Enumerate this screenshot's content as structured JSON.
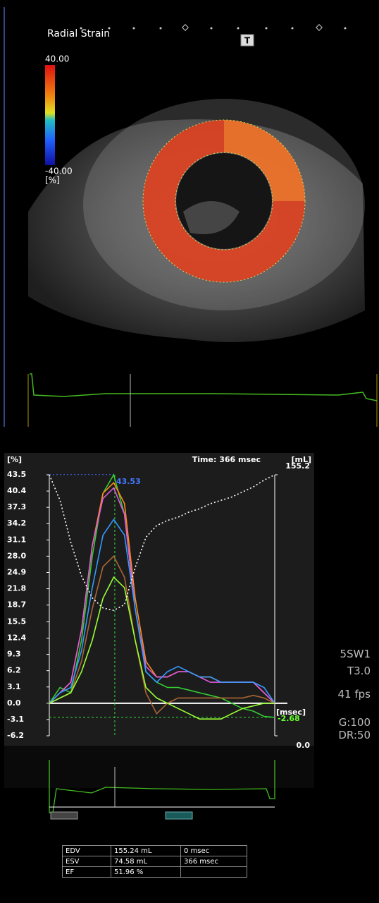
{
  "echo": {
    "title": "Radial Strain",
    "scale_max": "40.00",
    "scale_min": "-40.00",
    "scale_unit": "[%]",
    "button": "T"
  },
  "chart_data": {
    "type": "line",
    "y_label": "[%]",
    "y2_label": "[mL]",
    "x_label": "[msec]",
    "time_label": "Time: 366 msec",
    "cursor_x": 366,
    "peak_value": 43.53,
    "end_value": -2.68,
    "x": [
      0,
      60,
      120,
      180,
      240,
      300,
      360,
      420,
      480,
      540,
      600,
      660,
      720,
      780,
      840,
      900,
      960,
      1020,
      1080,
      1140,
      1200,
      1260
    ],
    "xlim": [
      0,
      1260
    ],
    "ylim": [
      -6.2,
      43.5
    ],
    "yticks": [
      43.5,
      40.4,
      37.3,
      34.2,
      31.1,
      {
        "value": 28,
        "label": "28.0"
      },
      24.9,
      21.8,
      18.7,
      15.5,
      12.4,
      9.3,
      6.2,
      3.1,
      {
        "value": 0,
        "label": "0.0"
      },
      -3.1,
      -6.2
    ],
    "y2lim": [
      0,
      155.2
    ],
    "y2ticks": [
      155.2,
      {
        "value": 0,
        "label": "0.0"
      }
    ],
    "series": [
      {
        "color": "#33cc33",
        "values": [
          0,
          3,
          2,
          12,
          28,
          40,
          43.5,
          36,
          18,
          6,
          4,
          3,
          3,
          2.5,
          2,
          1.5,
          1,
          0,
          -1,
          -1.5,
          -2.5,
          -2.7
        ]
      },
      {
        "color": "#ff8a1a",
        "values": [
          0,
          2,
          4,
          14,
          30,
          40,
          42,
          38,
          20,
          8,
          5,
          5,
          6,
          6,
          5,
          5,
          4,
          4,
          4,
          4,
          2,
          0
        ]
      },
      {
        "color": "#e05ae0",
        "values": [
          0,
          2,
          4,
          14,
          30,
          39,
          41,
          36,
          18,
          7,
          5,
          5,
          6,
          6,
          5,
          4,
          4,
          4,
          4,
          4,
          2,
          0
        ]
      },
      {
        "color": "#3399ff",
        "values": [
          0,
          2,
          3,
          10,
          22,
          32,
          35,
          32,
          18,
          6,
          4,
          6,
          7,
          6,
          5,
          5,
          4,
          4,
          4,
          4,
          3,
          0
        ]
      },
      {
        "color": "#aa6633",
        "values": [
          0,
          1,
          2,
          8,
          18,
          26,
          28,
          24,
          12,
          2,
          -2,
          0,
          1,
          1,
          1,
          1,
          1,
          1,
          1,
          1.5,
          1,
          0
        ]
      },
      {
        "color": "#99ff33",
        "values": [
          0,
          1,
          2,
          6,
          12,
          20,
          24,
          22,
          12,
          3,
          1,
          0,
          -1,
          -2,
          -3,
          -3,
          -3,
          -2,
          -1,
          -0.5,
          0,
          0
        ]
      },
      {
        "color": "#ffffff",
        "axis": "y2",
        "dashed": true,
        "values": [
          155.2,
          140,
          115,
          95,
          82,
          76,
          74.58,
          78,
          100,
          118,
          125,
          128,
          130,
          133,
          135,
          138,
          140,
          142,
          145,
          148,
          152,
          155.2
        ]
      }
    ]
  },
  "side_info": [
    "5SW1",
    "T3.0",
    "41 fps",
    "G:100",
    "DR:50"
  ],
  "table": {
    "rows": [
      [
        "EDV",
        "155.24 mL",
        "0 msec"
      ],
      [
        "ESV",
        "74.58 mL",
        "366 msec"
      ],
      [
        "EF",
        "51.96 %",
        ""
      ]
    ]
  }
}
